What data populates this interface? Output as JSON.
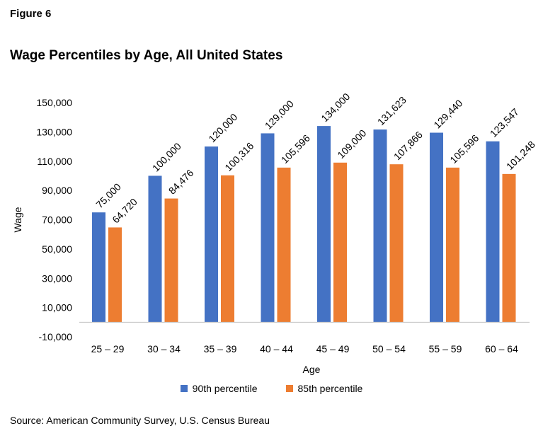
{
  "figure_label": "Figure 6",
  "source": "Source: American Community Survey, U.S. Census Bureau",
  "chart_data": {
    "type": "bar",
    "title": "Wage Percentiles by Age, All United States",
    "xlabel": "Age",
    "ylabel": "Wage",
    "categories": [
      "25 – 29",
      "30 – 34",
      "35 – 39",
      "40 – 44",
      "45 – 49",
      "50 – 54",
      "55 – 59",
      "60 – 64"
    ],
    "series": [
      {
        "name": "90th percentile",
        "color": "#4472C4",
        "values": [
          75000,
          100000,
          120000,
          129000,
          134000,
          131623,
          129440,
          123547
        ]
      },
      {
        "name": "85th percentile",
        "color": "#ED7D31",
        "values": [
          64720,
          84476,
          100316,
          105596,
          109000,
          107866,
          105596,
          101248
        ]
      }
    ],
    "ylim": [
      -10000,
      150000
    ],
    "yticks": [
      -10000,
      10000,
      30000,
      50000,
      70000,
      90000,
      110000,
      130000,
      150000
    ],
    "ytick_labels": [
      "-10,000",
      "10,000",
      "30,000",
      "50,000",
      "70,000",
      "90,000",
      "110,000",
      "130,000",
      "150,000"
    ],
    "data_labels": [
      [
        "75,000",
        "100,000",
        "120,000",
        "129,000",
        "134,000",
        "131,623",
        "129,440",
        "123,547"
      ],
      [
        "64,720",
        "84,476",
        "100,316",
        "105,596",
        "109,000",
        "107,866",
        "105,596",
        "101,248"
      ]
    ],
    "baseline": 0,
    "grid": false,
    "legend": "bottom"
  }
}
